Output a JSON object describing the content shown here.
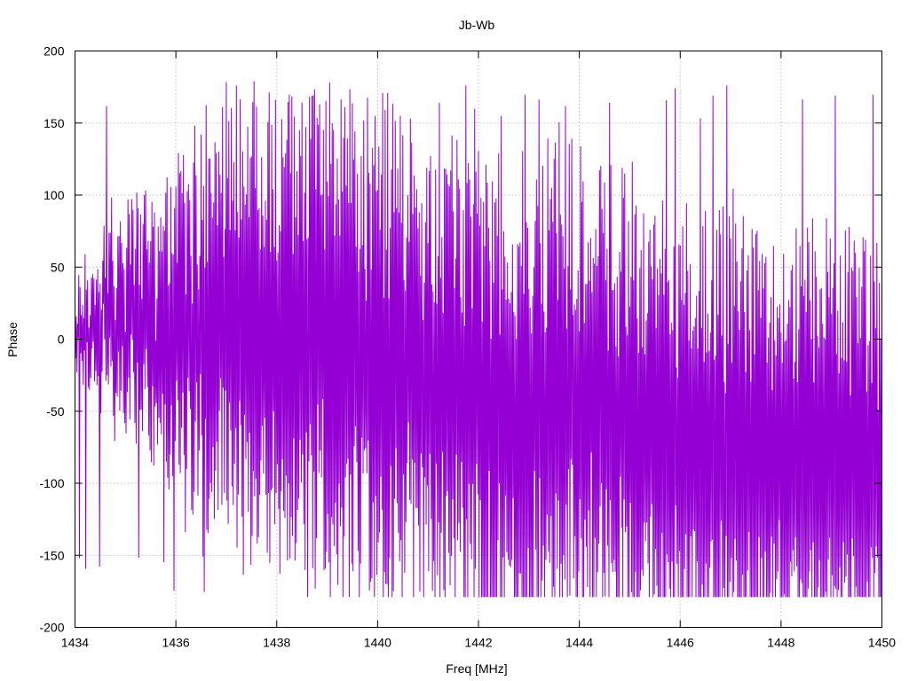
{
  "chart_data": {
    "type": "line",
    "title": "Jb-Wb",
    "xlabel": "Freq [MHz]",
    "ylabel": "Phase",
    "xlim": [
      1434,
      1450
    ],
    "ylim": [
      -200,
      200
    ],
    "x_ticks": [
      1434,
      1436,
      1438,
      1440,
      1442,
      1444,
      1446,
      1448,
      1450
    ],
    "y_ticks": [
      -200,
      -150,
      -100,
      -50,
      0,
      50,
      100,
      150,
      200
    ],
    "x_tick_labels": [
      "1434",
      "1436",
      "1438",
      "1440",
      "1442",
      "1444",
      "1446",
      "1448",
      "1450"
    ],
    "y_tick_labels": [
      "-200",
      "-150",
      "-100",
      "-50",
      "0",
      "50",
      "100",
      "150",
      "200"
    ],
    "grid": true,
    "legend": "none",
    "series": [
      {
        "color": "#9400d3",
        "x_start": 1434,
        "x_step": 0.025,
        "y": [
          5,
          -5,
          40,
          20,
          -15,
          55,
          30,
          -20,
          10,
          60,
          -30,
          35,
          15,
          -45,
          80,
          25,
          -10,
          50,
          70,
          20,
          -25,
          45,
          30,
          60,
          10,
          -35,
          40,
          35,
          55,
          20,
          -5,
          45,
          25,
          -40,
          30,
          50,
          15,
          -20,
          35,
          25,
          -60,
          40,
          10,
          -25,
          30,
          55,
          -15,
          20,
          35,
          -70,
          15,
          30,
          -10,
          45,
          25,
          -35,
          20,
          10,
          -50,
          35,
          40,
          -20,
          25,
          50,
          15,
          -30,
          10,
          35,
          60,
          20,
          -15,
          40,
          25,
          -5,
          30,
          45,
          -25,
          15,
          35,
          5,
          -45,
          20,
          40,
          10,
          -20,
          30,
          15,
          -35,
          25,
          45,
          -10,
          20,
          35,
          -5,
          15,
          -30,
          25,
          10,
          -20,
          35,
          5,
          -40,
          15,
          30,
          -15,
          20,
          -5,
          25,
          -30,
          10,
          35,
          -10,
          -25,
          20,
          5,
          -35,
          15,
          -20,
          10,
          -45,
          25,
          5,
          -30,
          15,
          -15,
          -5,
          20,
          -40,
          10,
          -20,
          15,
          -50,
          5,
          -25,
          10,
          -35,
          -10,
          20,
          -30,
          -5,
          15,
          -45,
          -15,
          5,
          -55,
          -20,
          10,
          -35,
          -25,
          -5,
          -60,
          -15,
          15,
          -45,
          -30,
          -10,
          -70,
          -25,
          5,
          -50,
          -35,
          -15,
          -65,
          -20,
          -40,
          -5,
          -55,
          -30,
          -75,
          -45,
          -20,
          -60,
          -35,
          -80,
          -50,
          -25,
          -65,
          -40,
          -90,
          -55,
          -30,
          -70,
          -45,
          -85,
          -60,
          -35,
          -75,
          -50,
          -95,
          -65,
          -40,
          -80,
          -55,
          -100,
          -70,
          -45,
          -85,
          -60,
          -105,
          -75,
          -50,
          -90,
          -65,
          -110,
          -80,
          -55,
          -95,
          -70,
          -115,
          -85,
          -60,
          -100,
          -75,
          -120,
          -90,
          -65,
          -105,
          -80,
          -125,
          -95,
          -70,
          -110,
          -85,
          -130,
          -100,
          -75,
          -115,
          -90,
          -60,
          -120,
          -95,
          -70,
          -40,
          -110,
          -85,
          -55,
          -100,
          -75,
          -45,
          -95,
          -65,
          -30,
          -90,
          -60,
          -100,
          -70,
          -40,
          -95,
          -65,
          -110,
          -80,
          -50,
          -100,
          -70,
          -120,
          -85,
          -55,
          -105,
          -75,
          -130,
          -90,
          -60,
          -110,
          -80,
          -140,
          -95,
          -65,
          -115,
          -85,
          -150,
          -100,
          -70,
          -120,
          -90,
          -155,
          -105,
          -75,
          -125,
          -95,
          -160,
          -110,
          -80,
          -130,
          -100,
          -165,
          -115,
          -85,
          -135,
          -105,
          -170,
          -120,
          -90,
          -140,
          -110,
          -175,
          -125,
          -95,
          -145,
          -115,
          -170,
          -130,
          -100,
          -150,
          -120,
          -165,
          -135,
          -105,
          -155,
          -125,
          -170,
          -140,
          -110,
          -160,
          -130,
          -175,
          -145,
          -115,
          -165,
          -135,
          -170,
          -150,
          -120,
          -160,
          -140,
          -175,
          -155,
          -125,
          -165,
          -145,
          -170,
          -160,
          -130,
          -150,
          -175,
          -140,
          -165,
          -120,
          -155,
          -170,
          -135,
          -160,
          -125,
          -150,
          -175,
          -130,
          -165,
          -140,
          -170,
          -155,
          -125,
          -160,
          -145,
          -175,
          -150,
          -130,
          -165,
          -140,
          -170,
          -155,
          -135,
          -160,
          -145,
          -175,
          -165,
          -140,
          -170,
          -150,
          -175,
          -160,
          -145,
          -170,
          -155,
          -175,
          -165,
          -150,
          -170,
          -160,
          -175,
          -165,
          -155,
          -170,
          -160,
          -175,
          -165,
          -160,
          -170,
          -165,
          -175,
          -170,
          -165,
          -175,
          -170,
          -170,
          -175,
          -170,
          -175,
          -175,
          -170,
          -175,
          -175,
          -175
        ],
        "amplitude": [
          22,
          22,
          24,
          26,
          26,
          28,
          30,
          32,
          34,
          36,
          38,
          40,
          42,
          44,
          46,
          48,
          50,
          52,
          54,
          56,
          58,
          60,
          60,
          62,
          62,
          64,
          64,
          66,
          66,
          68,
          70,
          70,
          72,
          74,
          74,
          76,
          78,
          78,
          80,
          80,
          82,
          82,
          84,
          84,
          86,
          86,
          88,
          88,
          90,
          90,
          92,
          92,
          94,
          94,
          96,
          96,
          98,
          98,
          100,
          100,
          102,
          102,
          104,
          104,
          106,
          106,
          108,
          108,
          110,
          110,
          112,
          112,
          114,
          114,
          116,
          116,
          118,
          118,
          120,
          120,
          122,
          122,
          124,
          124,
          126,
          126,
          128,
          128,
          130,
          130,
          130,
          132,
          132,
          134,
          134,
          136,
          136,
          138,
          138,
          140,
          140,
          142,
          142,
          144,
          144,
          146,
          146,
          148,
          148,
          150,
          150,
          152,
          152,
          154,
          154,
          156,
          156,
          158,
          158,
          160,
          160,
          162,
          162,
          164,
          164,
          166,
          166,
          168,
          168,
          170,
          170,
          170,
          172,
          172,
          172,
          174,
          174,
          174,
          176,
          176,
          176,
          176,
          178,
          178,
          178,
          178,
          178,
          180,
          180,
          180,
          180,
          180,
          180,
          180,
          180,
          180,
          180,
          180,
          180,
          180,
          180,
          180,
          180,
          180,
          180,
          180,
          180,
          180,
          180,
          180,
          180,
          180,
          180,
          180,
          180,
          180,
          180,
          180,
          180,
          180,
          180,
          180,
          180,
          180,
          180,
          180,
          180,
          180,
          180,
          180,
          180,
          180,
          180,
          180,
          180,
          180,
          180,
          180,
          180,
          180,
          180,
          180,
          180,
          180,
          180,
          180,
          180,
          180,
          180,
          180,
          180,
          180,
          180,
          180,
          180,
          180,
          180,
          180,
          180,
          180,
          180,
          180,
          180,
          180,
          180,
          180,
          180,
          180,
          180,
          180,
          180,
          180,
          180,
          180,
          180,
          180,
          180,
          180,
          180,
          180,
          180,
          180,
          180,
          180,
          180,
          180,
          180,
          180,
          180,
          180,
          180,
          180,
          180,
          180,
          180,
          180,
          180,
          180,
          180,
          180,
          180,
          180,
          180,
          180,
          180,
          180,
          180,
          180,
          180,
          180,
          180,
          180,
          180,
          180,
          180,
          180,
          180,
          180,
          180,
          180,
          180,
          180,
          180,
          180,
          180,
          180,
          180,
          180,
          180,
          180,
          180,
          180,
          180,
          180,
          180,
          180,
          180,
          180,
          180,
          180,
          180,
          180,
          180,
          180,
          180,
          180,
          180,
          180,
          180,
          180,
          180,
          180,
          180,
          180,
          180,
          180,
          180,
          180,
          180,
          180,
          180,
          180,
          180,
          180,
          180,
          180,
          180,
          180,
          180,
          180,
          180,
          180,
          180,
          180,
          180,
          180,
          180,
          180,
          180,
          180,
          180,
          180,
          180,
          180,
          180,
          180,
          180,
          180,
          180,
          180,
          180,
          180,
          180,
          180,
          180,
          180,
          180,
          180,
          180,
          180,
          180,
          180,
          180,
          180,
          180,
          180,
          180,
          180,
          180,
          180,
          180,
          180,
          180,
          180,
          180,
          180,
          180,
          180,
          180,
          180,
          180,
          180,
          180,
          180,
          180,
          180,
          180,
          180,
          180,
          180,
          180,
          180,
          180,
          180,
          180,
          180,
          180,
          180,
          180,
          180,
          180,
          180,
          180,
          180,
          180,
          180,
          180,
          180,
          180,
          180,
          180,
          180,
          180,
          180,
          180,
          180,
          180,
          180,
          180,
          180,
          180,
          180,
          180,
          180,
          180,
          180,
          180,
          180,
          180,
          180,
          180,
          180,
          180,
          180,
          180,
          180,
          180,
          180,
          180,
          180,
          180,
          180,
          180,
          180,
          180,
          180,
          180,
          180,
          180,
          180,
          180,
          180,
          180,
          180,
          180,
          180,
          180,
          180,
          180,
          180,
          180,
          180,
          180,
          180,
          180,
          180,
          180,
          180,
          180,
          180,
          180,
          180,
          180,
          180,
          180,
          180,
          180,
          180,
          180,
          180,
          180,
          180,
          180,
          180,
          180,
          180,
          180,
          180,
          180,
          180,
          180,
          180,
          180,
          180,
          180,
          180,
          180,
          180,
          180,
          180,
          180,
          180,
          180,
          180,
          180,
          180,
          180,
          180,
          180,
          180,
          180,
          180,
          180,
          180,
          180,
          180,
          180,
          180,
          180,
          180,
          180,
          180,
          180,
          180,
          180,
          180,
          180,
          180,
          180,
          180,
          180,
          180,
          180,
          180,
          180,
          180,
          180,
          180,
          180,
          180,
          180,
          180,
          180,
          180,
          180,
          180,
          180,
          180,
          180,
          180,
          180,
          180,
          180,
          180,
          180,
          180,
          180,
          180,
          180,
          180,
          180,
          180,
          180,
          180,
          180,
          180,
          180,
          180,
          180,
          180,
          180,
          180,
          180,
          180,
          180,
          180,
          180,
          180,
          180,
          180,
          180,
          180,
          180,
          180,
          180,
          180,
          180,
          180,
          180,
          180,
          180,
          180,
          180,
          180,
          180,
          180,
          180,
          180,
          180,
          180,
          180,
          180,
          180,
          180,
          180,
          180,
          180,
          180,
          180,
          180,
          180,
          180,
          180,
          180
        ]
      }
    ]
  }
}
